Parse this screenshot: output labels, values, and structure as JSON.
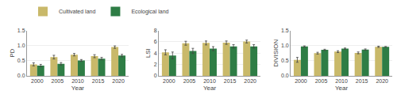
{
  "chart_data": [
    {
      "type": "bar",
      "xlabel": "Year",
      "ylabel": "PD",
      "categories": [
        "2000",
        "2005",
        "2010",
        "2015",
        "2020"
      ],
      "series": [
        {
          "name": "Cultivated land",
          "color": "#C9B96A",
          "values": [
            0.38,
            0.62,
            0.7,
            0.65,
            0.95
          ],
          "errors": [
            0.05,
            0.06,
            0.04,
            0.05,
            0.04
          ]
        },
        {
          "name": "Ecological land",
          "color": "#2E7D45",
          "values": [
            0.34,
            0.4,
            0.51,
            0.57,
            0.67
          ],
          "errors": [
            0.04,
            0.04,
            0.03,
            0.04,
            0.04
          ]
        }
      ],
      "ylim": [
        0,
        1.5
      ],
      "yticks": [
        {
          "value": 0,
          "label": "0.0"
        },
        0.5,
        {
          "value": 1,
          "label": "1.0"
        },
        1.5
      ],
      "grid": true
    },
    {
      "type": "bar",
      "xlabel": "Year",
      "ylabel": "LSI",
      "categories": [
        "2000",
        "2005",
        "2010",
        "2015",
        "2020"
      ],
      "series": [
        {
          "name": "Cultivated land",
          "color": "#C9B96A",
          "values": [
            4.15,
            5.75,
            5.8,
            5.85,
            6.05
          ],
          "errors": [
            0.45,
            0.35,
            0.35,
            0.3,
            0.25
          ]
        },
        {
          "name": "Ecological land",
          "color": "#2E7D45",
          "values": [
            3.6,
            4.4,
            4.8,
            5.2,
            5.2
          ],
          "errors": [
            0.6,
            0.45,
            0.35,
            0.3,
            0.3
          ]
        }
      ],
      "ylim": [
        0,
        8
      ],
      "yticks": [
        0,
        2,
        4,
        6,
        8
      ],
      "grid": true
    },
    {
      "type": "bar",
      "xlabel": "Year",
      "ylabel": "DIVISION",
      "categories": [
        "2000",
        "2005",
        "2010",
        "2015",
        "2020"
      ],
      "series": [
        {
          "name": "Cultivated land",
          "color": "#C9B96A",
          "values": [
            0.53,
            0.75,
            0.8,
            0.76,
            0.96
          ],
          "errors": [
            0.08,
            0.03,
            0.03,
            0.03,
            0.02
          ]
        },
        {
          "name": "Ecological land",
          "color": "#2E7D45",
          "values": [
            0.97,
            0.86,
            0.9,
            0.87,
            0.96
          ],
          "errors": [
            0.02,
            0.02,
            0.02,
            0.02,
            0.01
          ]
        }
      ],
      "ylim": [
        0,
        1.5
      ],
      "yticks": [
        {
          "value": 0,
          "label": "0.0"
        },
        0.5,
        {
          "value": 1,
          "label": "1.0"
        },
        1.5
      ],
      "grid": true,
      "legend": "upper left"
    }
  ]
}
